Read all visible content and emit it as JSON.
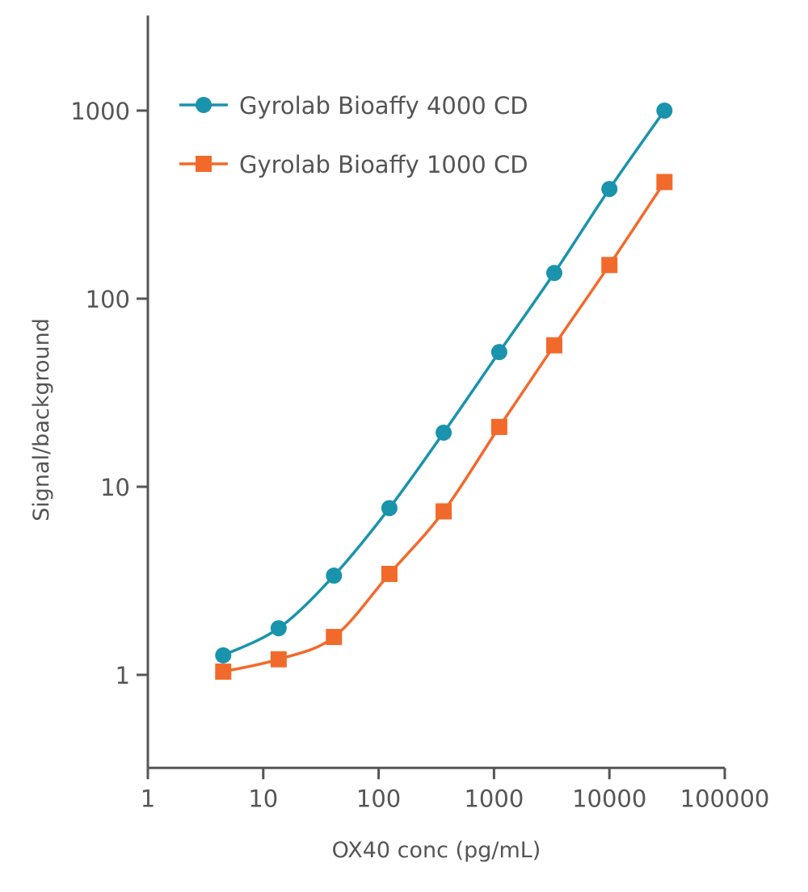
{
  "chart_data": {
    "type": "line",
    "title": "",
    "xlabel": "OX40 conc (pg/mL)",
    "ylabel": "Signal/background",
    "xscale": "log",
    "yscale": "log",
    "xlim": [
      1,
      100000
    ],
    "ylim": [
      0.32,
      3200
    ],
    "xticks": [
      "1",
      "10",
      "100",
      "1000",
      "10000",
      "100000"
    ],
    "yticks": [
      "1",
      "10",
      "100",
      "1000"
    ],
    "grid": false,
    "legend_position": "top-left",
    "series": [
      {
        "name": "Gyrolab Bioaffy 4000 CD",
        "color": "#1a93ac",
        "marker": "circle",
        "x": [
          4.5,
          13.6,
          41,
          124,
          366,
          1110,
          3330,
          10000,
          30000
        ],
        "y": [
          1.27,
          1.77,
          3.37,
          7.7,
          19.4,
          52,
          137,
          383,
          1000
        ]
      },
      {
        "name": "Gyrolab Bioaffy 1000 CD",
        "color": "#f26a2b",
        "marker": "square",
        "x": [
          4.5,
          13.6,
          41,
          124,
          366,
          1110,
          3330,
          10000,
          30000
        ],
        "y": [
          1.04,
          1.21,
          1.59,
          3.44,
          7.4,
          20.8,
          56.5,
          151,
          417
        ]
      }
    ]
  }
}
